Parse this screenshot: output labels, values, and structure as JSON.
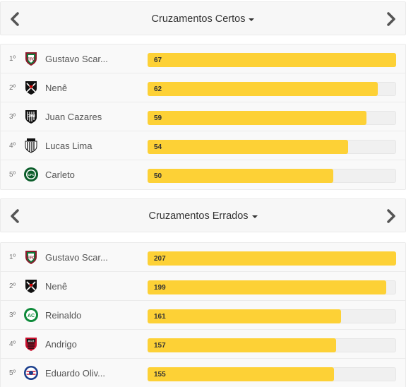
{
  "colors": {
    "bar": "#fdd136",
    "track": "#f0f0f0"
  },
  "panels": [
    {
      "title": "Cruzamentos Certos",
      "left_icon": "chevron-left-icon",
      "right_icon": "chevron-right-icon",
      "max": 67,
      "rows": [
        {
          "rank": "1º",
          "name": "Gustavo Scar...",
          "value": 67,
          "crest": "fluminense-crest-icon"
        },
        {
          "rank": "2º",
          "name": "Nenê",
          "value": 62,
          "crest": "vasco-crest-icon"
        },
        {
          "rank": "3º",
          "name": "Juan Cazares",
          "value": 59,
          "crest": "atletico-mg-crest-icon"
        },
        {
          "rank": "4º",
          "name": "Lucas Lima",
          "value": 54,
          "crest": "santos-crest-icon"
        },
        {
          "rank": "5º",
          "name": "Carleto",
          "value": 50,
          "crest": "coritiba-crest-icon"
        }
      ]
    },
    {
      "title": "Cruzamentos Errados",
      "left_icon": "chevron-left-icon",
      "right_icon": "chevron-right-icon",
      "max": 207,
      "rows": [
        {
          "rank": "1º",
          "name": "Gustavo Scar...",
          "value": 207,
          "crest": "fluminense-crest-icon"
        },
        {
          "rank": "2º",
          "name": "Nenê",
          "value": 199,
          "crest": "vasco-crest-icon"
        },
        {
          "rank": "3º",
          "name": "Reinaldo",
          "value": 161,
          "crest": "chapecoense-crest-icon"
        },
        {
          "rank": "4º",
          "name": "Andrigo",
          "value": 157,
          "crest": "atletico-go-crest-icon"
        },
        {
          "rank": "5º",
          "name": "Eduardo Oliv...",
          "value": 155,
          "crest": "bahia-crest-icon"
        }
      ]
    }
  ]
}
